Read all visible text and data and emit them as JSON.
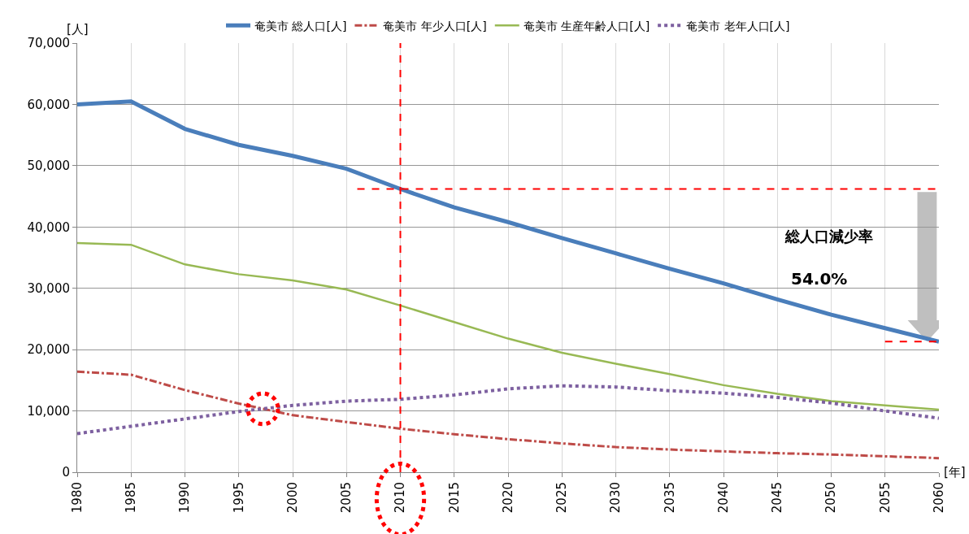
{
  "chart_data": {
    "type": "line",
    "ylabel": "[人]",
    "xlabel": "[年]",
    "x": [
      1980,
      1985,
      1990,
      1995,
      2000,
      2005,
      2010,
      2015,
      2020,
      2025,
      2030,
      2035,
      2040,
      2045,
      2050,
      2055,
      2060
    ],
    "series": [
      {
        "name": "奄美市 総人口[人]",
        "color": "#4a7ebb",
        "line_style": "solid",
        "values": [
          60000,
          60500,
          56000,
          53400,
          51600,
          49500,
          46200,
          43200,
          40800,
          38200,
          35700,
          33200,
          30800,
          28200,
          25700,
          23500,
          21300
        ]
      },
      {
        "name": "奄美市 年少人口[人]",
        "color": "#be4b48",
        "line_style": "dashdot",
        "values": [
          16400,
          15900,
          13400,
          11200,
          9300,
          8200,
          7100,
          6200,
          5400,
          4700,
          4100,
          3700,
          3400,
          3100,
          2900,
          2600,
          2300
        ]
      },
      {
        "name": "奄美市 生産年齢人口[人]",
        "color": "#98b954",
        "line_style": "solid",
        "values": [
          37400,
          37100,
          33900,
          32300,
          31300,
          29800,
          27200,
          24500,
          21800,
          19500,
          17700,
          16000,
          14200,
          12800,
          11600,
          10900,
          10200
        ]
      },
      {
        "name": "奄美市 老年人口[人]",
        "color": "#7d60a0",
        "line_style": "dotted",
        "values": [
          6300,
          7500,
          8700,
          9900,
          10900,
          11600,
          11900,
          12600,
          13600,
          14100,
          13900,
          13300,
          12900,
          12200,
          11300,
          10000,
          8800
        ]
      },
      {
        "type": "line",
        "color": "#ff0000",
        "line_style": "dashed",
        "x": [
          2006,
          2060
        ],
        "values": [
          46200,
          46200
        ]
      },
      {
        "type": "line",
        "color": "#ff0000",
        "line_style": "dashed",
        "x": [
          2055,
          2060
        ],
        "values": [
          21300,
          21300
        ]
      }
    ],
    "ref_lines": [
      {
        "axis": "x",
        "value": 2010,
        "color": "#ff0000",
        "line_style": "dashed"
      }
    ],
    "annotations": [
      "総人口減少率",
      "54.0%"
    ],
    "xlim": [
      1980,
      2060
    ],
    "xticks": [
      1980,
      1985,
      1990,
      1995,
      2000,
      2005,
      2010,
      2015,
      2020,
      2025,
      2030,
      2035,
      2040,
      2045,
      2050,
      2055,
      2060
    ],
    "ylim": [
      0,
      70000
    ],
    "yticks": [
      {
        "value": 0,
        "label": "0"
      },
      {
        "value": 10000,
        "label": "10,000"
      },
      {
        "value": 20000,
        "label": "20,000"
      },
      {
        "value": 30000,
        "label": "30,000"
      },
      {
        "value": 40000,
        "label": "40,000"
      },
      {
        "value": 50000,
        "label": "50,000"
      },
      {
        "value": 60000,
        "label": "60,000"
      },
      {
        "value": 70000,
        "label": "70,000"
      }
    ],
    "grid": true,
    "legend": "top",
    "marker": "none"
  }
}
